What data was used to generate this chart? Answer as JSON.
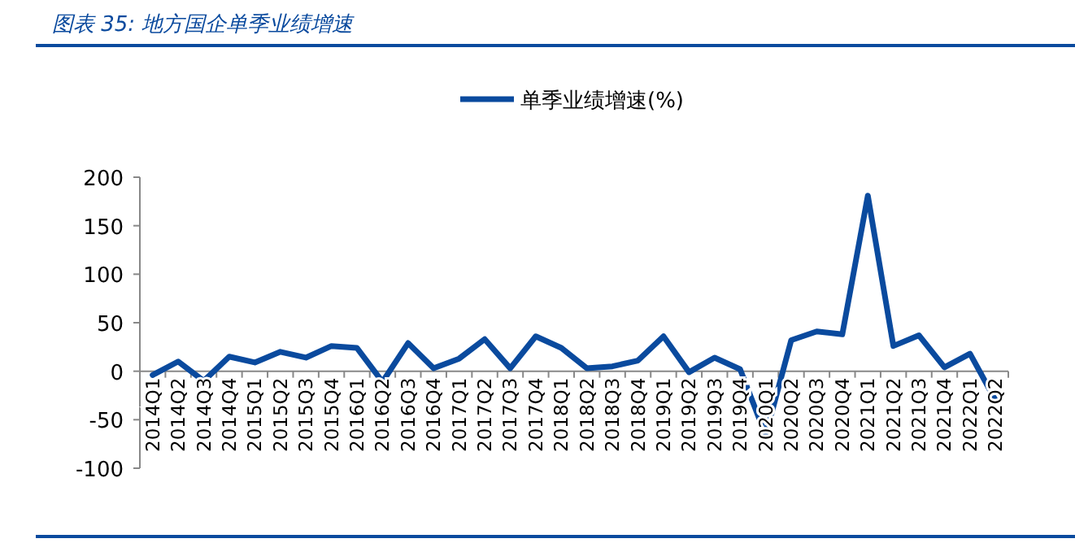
{
  "chart_data": {
    "type": "line",
    "title": "图表 35:  地方国企单季业绩增速",
    "categories": [
      "2014Q1",
      "2014Q2",
      "2014Q3",
      "2014Q4",
      "2015Q1",
      "2015Q2",
      "2015Q3",
      "2015Q4",
      "2016Q1",
      "2016Q2",
      "2016Q3",
      "2016Q4",
      "2017Q1",
      "2017Q2",
      "2017Q3",
      "2017Q4",
      "2018Q1",
      "2018Q2",
      "2018Q3",
      "2018Q4",
      "2019Q1",
      "2019Q2",
      "2019Q3",
      "2019Q4",
      "2020Q1",
      "2020Q2",
      "2020Q3",
      "2020Q4",
      "2021Q1",
      "2021Q2",
      "2021Q3",
      "2021Q4",
      "2022Q1",
      "2022Q2"
    ],
    "series": [
      {
        "name": "单季业绩增速(%)",
        "color": "#0a4a9e",
        "values": [
          -4,
          10,
          -10,
          15,
          9,
          20,
          14,
          26,
          24,
          -11,
          29,
          3,
          13,
          33,
          3,
          36,
          24,
          3,
          5,
          11,
          36,
          -1,
          14,
          2,
          -66,
          32,
          41,
          38,
          181,
          26,
          37,
          4,
          18,
          -30
        ]
      }
    ],
    "ylim": [
      -100,
      200
    ],
    "yticks": [
      -100,
      -50,
      0,
      50,
      100,
      150,
      200
    ],
    "legend": "top",
    "grid": false,
    "marker": "none",
    "line_style": "solid"
  }
}
